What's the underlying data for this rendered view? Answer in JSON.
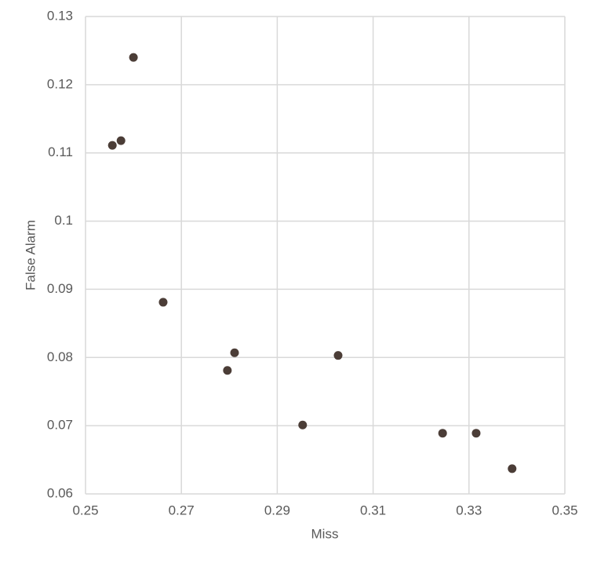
{
  "chart_data": {
    "type": "scatter",
    "x_label": "Miss",
    "y_label": "False Alarm",
    "series": [
      {
        "color": "#4b3d37",
        "x": [
          0.26,
          0.2574,
          0.2556,
          0.2662,
          0.2811,
          0.2796,
          0.3027,
          0.2953,
          0.3245,
          0.3315,
          0.339
        ],
        "values": [
          0.124,
          0.1118,
          0.1111,
          0.0881,
          0.0807,
          0.0781,
          0.0803,
          0.0701,
          0.0689,
          0.0689,
          0.0637
        ]
      }
    ],
    "xlim": [
      0.25,
      0.35
    ],
    "xticks": [
      0.25,
      0.27,
      0.29,
      0.31,
      0.33,
      0.35
    ],
    "ylim": [
      0.06,
      0.13
    ],
    "yticks": [
      0.06,
      0.07,
      0.08,
      0.09,
      0.1,
      0.11,
      0.12,
      0.13
    ],
    "grid": true
  }
}
